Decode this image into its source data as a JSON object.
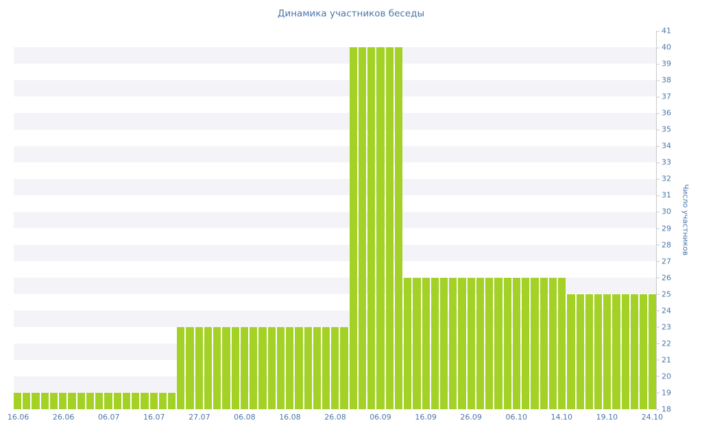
{
  "chart_data": {
    "type": "bar",
    "title": "Динамика участников беседы",
    "ylabel": "Число участников",
    "xlabel": "",
    "ylim": [
      18,
      41
    ],
    "grid": "alternating horizontal bands, every other 1-unit row shaded",
    "legend": "none",
    "y_axis_position": "right",
    "y_ticks": [
      41,
      40,
      39,
      38,
      37,
      36,
      35,
      34,
      33,
      32,
      31,
      30,
      29,
      28,
      27,
      26,
      25,
      24,
      23,
      22,
      21,
      20,
      19,
      18
    ],
    "x_tick_labels": [
      "16.06",
      "26.06",
      "06.07",
      "16.07",
      "27.07",
      "06.08",
      "16.08",
      "26.08",
      "06.09",
      "16.09",
      "26.09",
      "06.10",
      "14.10",
      "19.10",
      "24.10"
    ],
    "values": [
      19,
      19,
      19,
      19,
      19,
      19,
      19,
      19,
      19,
      19,
      19,
      19,
      19,
      19,
      19,
      19,
      19,
      19,
      23,
      23,
      23,
      23,
      23,
      23,
      23,
      23,
      23,
      23,
      23,
      23,
      23,
      23,
      23,
      23,
      23,
      23,
      23,
      40,
      40,
      40,
      40,
      40,
      40,
      26,
      26,
      26,
      26,
      26,
      26,
      26,
      26,
      26,
      26,
      26,
      26,
      26,
      26,
      26,
      26,
      26,
      26,
      25,
      25,
      25,
      25,
      25,
      25,
      25,
      25,
      25,
      25
    ],
    "segments_summary": [
      {
        "value": 19,
        "from_label": "16.06",
        "to_label": "before 27.07"
      },
      {
        "value": 23,
        "from_label": "27.07",
        "to_label": "late 26.08"
      },
      {
        "value": 40,
        "from_label": "around 06.09"
      },
      {
        "value": 26,
        "from_label": "16.09",
        "to_label": "14.10"
      },
      {
        "value": 25,
        "from_label": "after 14.10",
        "to_label": "24.10"
      }
    ],
    "colors": {
      "bar": "#a3d126",
      "label": "#4a76a8",
      "stripe": "#f4f3f7",
      "axis": "#c9c9c9",
      "background": "#ffffff"
    }
  }
}
